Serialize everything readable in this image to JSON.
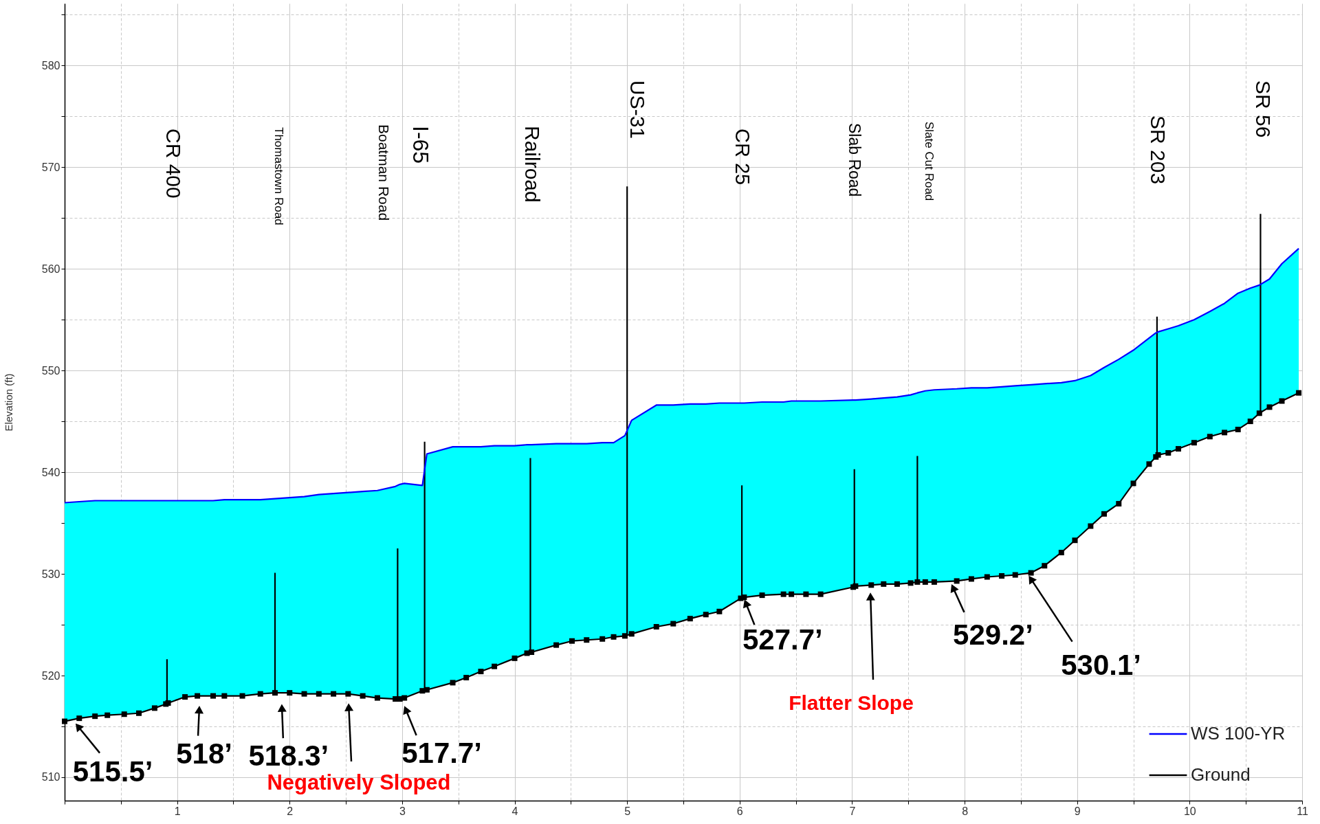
{
  "chart_data": {
    "type": "line",
    "ylabel": "Elevation (ft)",
    "xlim": [
      0,
      11
    ],
    "ylim": [
      507.7,
      586.1
    ],
    "xticks": [
      {
        "value": 0,
        "label": null
      },
      {
        "value": 0.5,
        "label": null
      },
      1,
      {
        "value": 1.5,
        "label": null
      },
      2,
      {
        "value": 2.5,
        "label": null
      },
      3,
      {
        "value": 3.5,
        "label": null
      },
      4,
      {
        "value": 4.5,
        "label": null
      },
      5,
      {
        "value": 5.5,
        "label": null
      },
      6,
      {
        "value": 6.5,
        "label": null
      },
      7,
      {
        "value": 7.5,
        "label": null
      },
      8,
      {
        "value": 8.5,
        "label": null
      },
      9,
      {
        "value": 9.5,
        "label": null
      },
      10,
      {
        "value": 10.5,
        "label": null
      },
      11
    ],
    "yticks": [
      510,
      {
        "value": 515,
        "label": null
      },
      520,
      {
        "value": 525,
        "label": null
      },
      530,
      {
        "value": 535,
        "label": null
      },
      540,
      {
        "value": 545,
        "label": null
      },
      550,
      {
        "value": 555,
        "label": null
      },
      560,
      {
        "value": 565,
        "label": null
      },
      570,
      {
        "value": 575,
        "label": null
      },
      580,
      {
        "value": 585,
        "label": null
      }
    ],
    "grid": true,
    "legend": "bottom right",
    "x": [
      0,
      0.13,
      0.27,
      0.38,
      0.53,
      0.66,
      0.8,
      0.9,
      0.92,
      1.07,
      1.18,
      1.32,
      1.42,
      1.58,
      1.74,
      1.87,
      2.0,
      2.13,
      2.26,
      2.39,
      2.52,
      2.65,
      2.78,
      2.94,
      2.98,
      3.02,
      3.18,
      3.22,
      3.45,
      3.57,
      3.7,
      3.82,
      4.0,
      4.11,
      4.15,
      4.37,
      4.51,
      4.64,
      4.78,
      4.88,
      4.98,
      5.04,
      5.26,
      5.41,
      5.56,
      5.7,
      5.82,
      6.01,
      6.04,
      6.2,
      6.39,
      6.46,
      6.59,
      6.72,
      7.01,
      7.03,
      7.17,
      7.28,
      7.4,
      7.52,
      7.58,
      7.65,
      7.73,
      7.93,
      8.06,
      8.2,
      8.33,
      8.45,
      8.59,
      8.71,
      8.86,
      8.98,
      9.12,
      9.24,
      9.37,
      9.5,
      9.64,
      9.7,
      9.72,
      9.81,
      9.9,
      10.04,
      10.18,
      10.31,
      10.43,
      10.54,
      10.62,
      10.71,
      10.82,
      10.97
    ],
    "series": [
      {
        "x": [
          0.91,
          0.91,
          null,
          1.87,
          1.87,
          null,
          2.96,
          2.96,
          null,
          3.2,
          3.2,
          null,
          4.14,
          4.14,
          null,
          5.0,
          5.0,
          null,
          6.02,
          6.02,
          null,
          7.02,
          7.02,
          null,
          7.58,
          7.58,
          null,
          9.71,
          9.71,
          null,
          10.63,
          10.63
        ],
        "color": "#000000",
        "values": [
          517.2,
          521.6,
          null,
          518.3,
          530.1,
          null,
          517.7,
          532.5,
          null,
          518.5,
          543.0,
          null,
          522.2,
          541.4,
          null,
          523.9,
          568.1,
          null,
          527.6,
          538.7,
          null,
          528.7,
          540.3,
          null,
          529.2,
          541.6,
          null,
          541.6,
          555.3,
          null,
          545.8,
          565.4
        ]
      },
      {
        "name": "WS 100-YR",
        "color": "#0000ff",
        "values": [
          537.0,
          537.1,
          537.2,
          537.2,
          537.2,
          537.2,
          537.2,
          537.2,
          537.2,
          537.2,
          537.2,
          537.2,
          537.3,
          537.3,
          537.3,
          537.4,
          537.5,
          537.6,
          537.8,
          537.9,
          538.0,
          538.1,
          538.2,
          538.6,
          538.8,
          538.9,
          538.7,
          541.8,
          542.5,
          542.5,
          542.5,
          542.6,
          542.6,
          542.7,
          542.7,
          542.8,
          542.8,
          542.8,
          542.9,
          542.9,
          543.6,
          545.1,
          546.6,
          546.6,
          546.7,
          546.7,
          546.8,
          546.8,
          546.8,
          546.9,
          546.9,
          547.0,
          547.0,
          547.0,
          547.1,
          547.1,
          547.2,
          547.3,
          547.4,
          547.6,
          547.8,
          548.0,
          548.1,
          548.2,
          548.3,
          548.3,
          548.4,
          548.5,
          548.6,
          548.7,
          548.8,
          549.0,
          549.5,
          550.3,
          551.1,
          552.0,
          553.2,
          553.7,
          553.8,
          554.1,
          554.4,
          555.0,
          555.8,
          556.6,
          557.6,
          558.1,
          558.4,
          559.0,
          560.5,
          562.0
        ],
        "lower": [
          515.5,
          515.8,
          516.0,
          516.1,
          516.2,
          516.3,
          516.8,
          517.2,
          517.3,
          517.9,
          518.0,
          518.0,
          518.0,
          518.0,
          518.2,
          518.3,
          518.3,
          518.2,
          518.2,
          518.2,
          518.2,
          518.0,
          517.8,
          517.7,
          517.7,
          517.8,
          518.5,
          518.6,
          519.3,
          519.8,
          520.4,
          520.9,
          521.7,
          522.2,
          522.3,
          523.0,
          523.4,
          523.5,
          523.6,
          523.8,
          523.9,
          524.1,
          524.8,
          525.1,
          525.6,
          526.0,
          526.3,
          527.6,
          527.7,
          527.9,
          528.0,
          528.0,
          528.0,
          528.0,
          528.7,
          528.8,
          528.9,
          529.0,
          529.0,
          529.1,
          529.2,
          529.2,
          529.2,
          529.3,
          529.5,
          529.7,
          529.8,
          529.9,
          530.1,
          530.8,
          532.1,
          533.3,
          534.7,
          535.9,
          536.9,
          538.9,
          540.8,
          541.5,
          541.7,
          541.9,
          542.3,
          542.9,
          543.5,
          543.9,
          544.2,
          545.0,
          545.8,
          546.4,
          547.0,
          547.8
        ],
        "upper": [
          537.0,
          537.1,
          537.2,
          537.2,
          537.2,
          537.2,
          537.2,
          537.2,
          537.2,
          537.2,
          537.2,
          537.2,
          537.3,
          537.3,
          537.3,
          537.4,
          537.5,
          537.6,
          537.8,
          537.9,
          538.0,
          538.1,
          538.2,
          538.6,
          538.8,
          538.9,
          538.7,
          541.8,
          542.5,
          542.5,
          542.5,
          542.6,
          542.6,
          542.7,
          542.7,
          542.8,
          542.8,
          542.8,
          542.9,
          542.9,
          543.6,
          545.1,
          546.6,
          546.6,
          546.7,
          546.7,
          546.8,
          546.8,
          546.8,
          546.9,
          546.9,
          547.0,
          547.0,
          547.0,
          547.1,
          547.1,
          547.2,
          547.3,
          547.4,
          547.6,
          547.8,
          548.0,
          548.1,
          548.2,
          548.3,
          548.3,
          548.4,
          548.5,
          548.6,
          548.7,
          548.8,
          549.0,
          549.5,
          550.3,
          551.1,
          552.0,
          553.2,
          553.7,
          553.8,
          554.1,
          554.4,
          555.0,
          555.8,
          556.6,
          557.6,
          558.1,
          558.4,
          559.0,
          560.5,
          562.0
        ]
      },
      {
        "name": "Ground",
        "color": "#000000",
        "marker": "square",
        "values": [
          515.5,
          515.8,
          516.0,
          516.1,
          516.2,
          516.3,
          516.8,
          517.2,
          517.3,
          517.9,
          518.0,
          518.0,
          518.0,
          518.0,
          518.2,
          518.3,
          518.3,
          518.2,
          518.2,
          518.2,
          518.2,
          518.0,
          517.8,
          517.7,
          517.7,
          517.8,
          518.5,
          518.6,
          519.3,
          519.8,
          520.4,
          520.9,
          521.7,
          522.2,
          522.3,
          523.0,
          523.4,
          523.5,
          523.6,
          523.8,
          523.9,
          524.1,
          524.8,
          525.1,
          525.6,
          526.0,
          526.3,
          527.6,
          527.7,
          527.9,
          528.0,
          528.0,
          528.0,
          528.0,
          528.7,
          528.8,
          528.9,
          529.0,
          529.0,
          529.1,
          529.2,
          529.2,
          529.2,
          529.3,
          529.5,
          529.7,
          529.8,
          529.9,
          530.1,
          530.8,
          532.1,
          533.3,
          534.7,
          535.9,
          536.9,
          538.9,
          540.8,
          541.5,
          541.7,
          541.9,
          542.3,
          542.9,
          543.5,
          543.9,
          544.2,
          545.0,
          545.8,
          546.4,
          547.0,
          547.8
        ]
      }
    ],
    "annotations": [
      "CR 400",
      "Thomastown Road",
      "Boatman Road",
      "I-65",
      "Railroad",
      "US-31",
      "CR 25",
      "Slab Road",
      "Slate Cut Road",
      "SR 203",
      "SR 56",
      {
        "text": "515.5’",
        "x": 0.08,
        "y": 515.5
      },
      {
        "text": "518’",
        "x": 1.18,
        "y": 518
      },
      {
        "text": "518.3’",
        "x": 1.93,
        "y": 518.3
      },
      "Negatively Sloped",
      {
        "text": "517.7’",
        "x": 2.98,
        "y": 517.7
      },
      {
        "text": "527.7’",
        "x": 6.04,
        "y": 527.7
      },
      "Flatter Slope",
      {
        "text": "529.2’",
        "x": 7.88,
        "y": 529.2
      },
      {
        "text": "530.1’",
        "x": 8.59,
        "y": 530.1
      }
    ]
  }
}
